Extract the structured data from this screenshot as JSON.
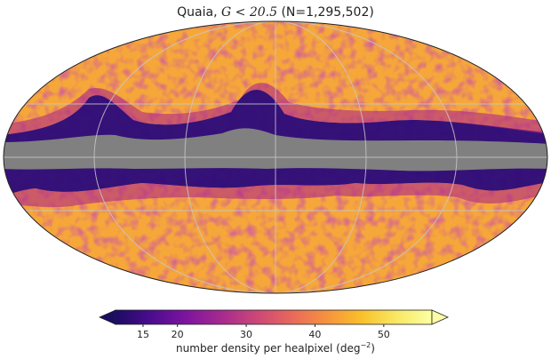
{
  "title": {
    "survey": "Quaia,",
    "cut": "G < 20.5",
    "count": "(N=1,295,502)"
  },
  "colorbar": {
    "ticks": [
      "15",
      "20",
      "30",
      "40",
      "50"
    ],
    "tick_values": [
      15,
      20,
      30,
      40,
      50
    ],
    "range": [
      11,
      57
    ],
    "label_text": "number density per healpixel (deg",
    "label_exp": "−2",
    "label_close": ")",
    "colormap": [
      "#1b0c64",
      "#4b0c8e",
      "#7d14a0",
      "#a62a8f",
      "#cb4778",
      "#e8685c",
      "#f6923e",
      "#f9c02b",
      "#f8e865",
      "#fcffa4"
    ],
    "extend": "both"
  },
  "map": {
    "projection": "mollweide",
    "masked_color": "#808080",
    "grid_color": "#c0c0c0"
  }
}
